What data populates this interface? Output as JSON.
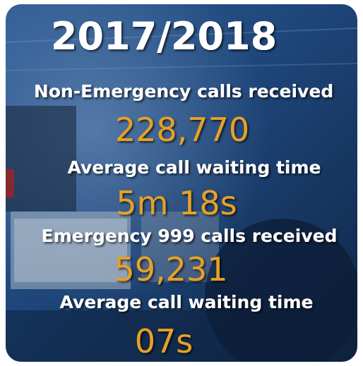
{
  "title": "2017/2018",
  "stats": [
    {
      "label": "Non-Emergency calls received",
      "value": "228,770"
    },
    {
      "label": "Average call waiting time",
      "value": "5m 18s"
    },
    {
      "label": "Emergency 999 calls received",
      "value": "59,231"
    },
    {
      "label": "Average call waiting time",
      "value": "07s"
    }
  ]
}
